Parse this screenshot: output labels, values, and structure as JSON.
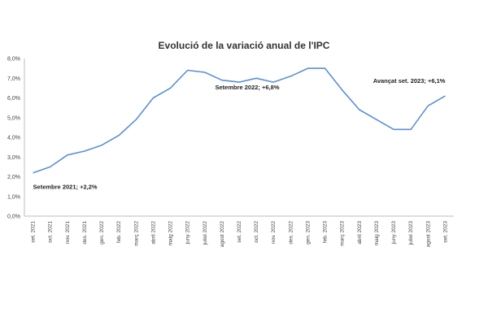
{
  "chart_data": {
    "type": "line",
    "title": "Evolució de la variació anual de l'IPC",
    "xlabel": "",
    "ylabel": "",
    "ylim": [
      0,
      8
    ],
    "yticks": [
      "0,0%",
      "1,0%",
      "2,0%",
      "3,0%",
      "4,0%",
      "5,0%",
      "6,0%",
      "7,0%",
      "8,0%"
    ],
    "grid": false,
    "legend": "none",
    "line_color": "#5b8fd6",
    "categories": [
      "set. 2021",
      "oct. 2021",
      "nov. 2021",
      "des. 2021",
      "gen. 2022",
      "feb. 2022",
      "març 2022",
      "abril 2022",
      "maig 2022",
      "juny 2022",
      "juliol 2022",
      "agost 2022",
      "set. 2022",
      "oct. 2022",
      "nov. 2022",
      "des. 2022",
      "gen. 2023",
      "feb. 2023",
      "març 2023",
      "abril 2023",
      "maig 2023",
      "juny 2023",
      "juliol 2023",
      "agost 2023",
      "set. 2023"
    ],
    "series": [
      {
        "values": [
          2.2,
          2.5,
          3.1,
          3.3,
          3.6,
          4.1,
          4.9,
          6.0,
          6.5,
          7.4,
          7.3,
          6.9,
          6.8,
          7.0,
          6.8,
          7.1,
          7.5,
          7.5,
          6.4,
          5.4,
          4.9,
          4.4,
          4.4,
          5.6,
          6.1
        ]
      }
    ],
    "annotations": [
      {
        "text": "Setembre 2021; +2,2%",
        "index": 0
      },
      {
        "text": "Setembre 2022;  +6,8%",
        "index": 12
      },
      {
        "text": "Avançat set. 2023; +6,1%",
        "index": 24
      }
    ]
  }
}
